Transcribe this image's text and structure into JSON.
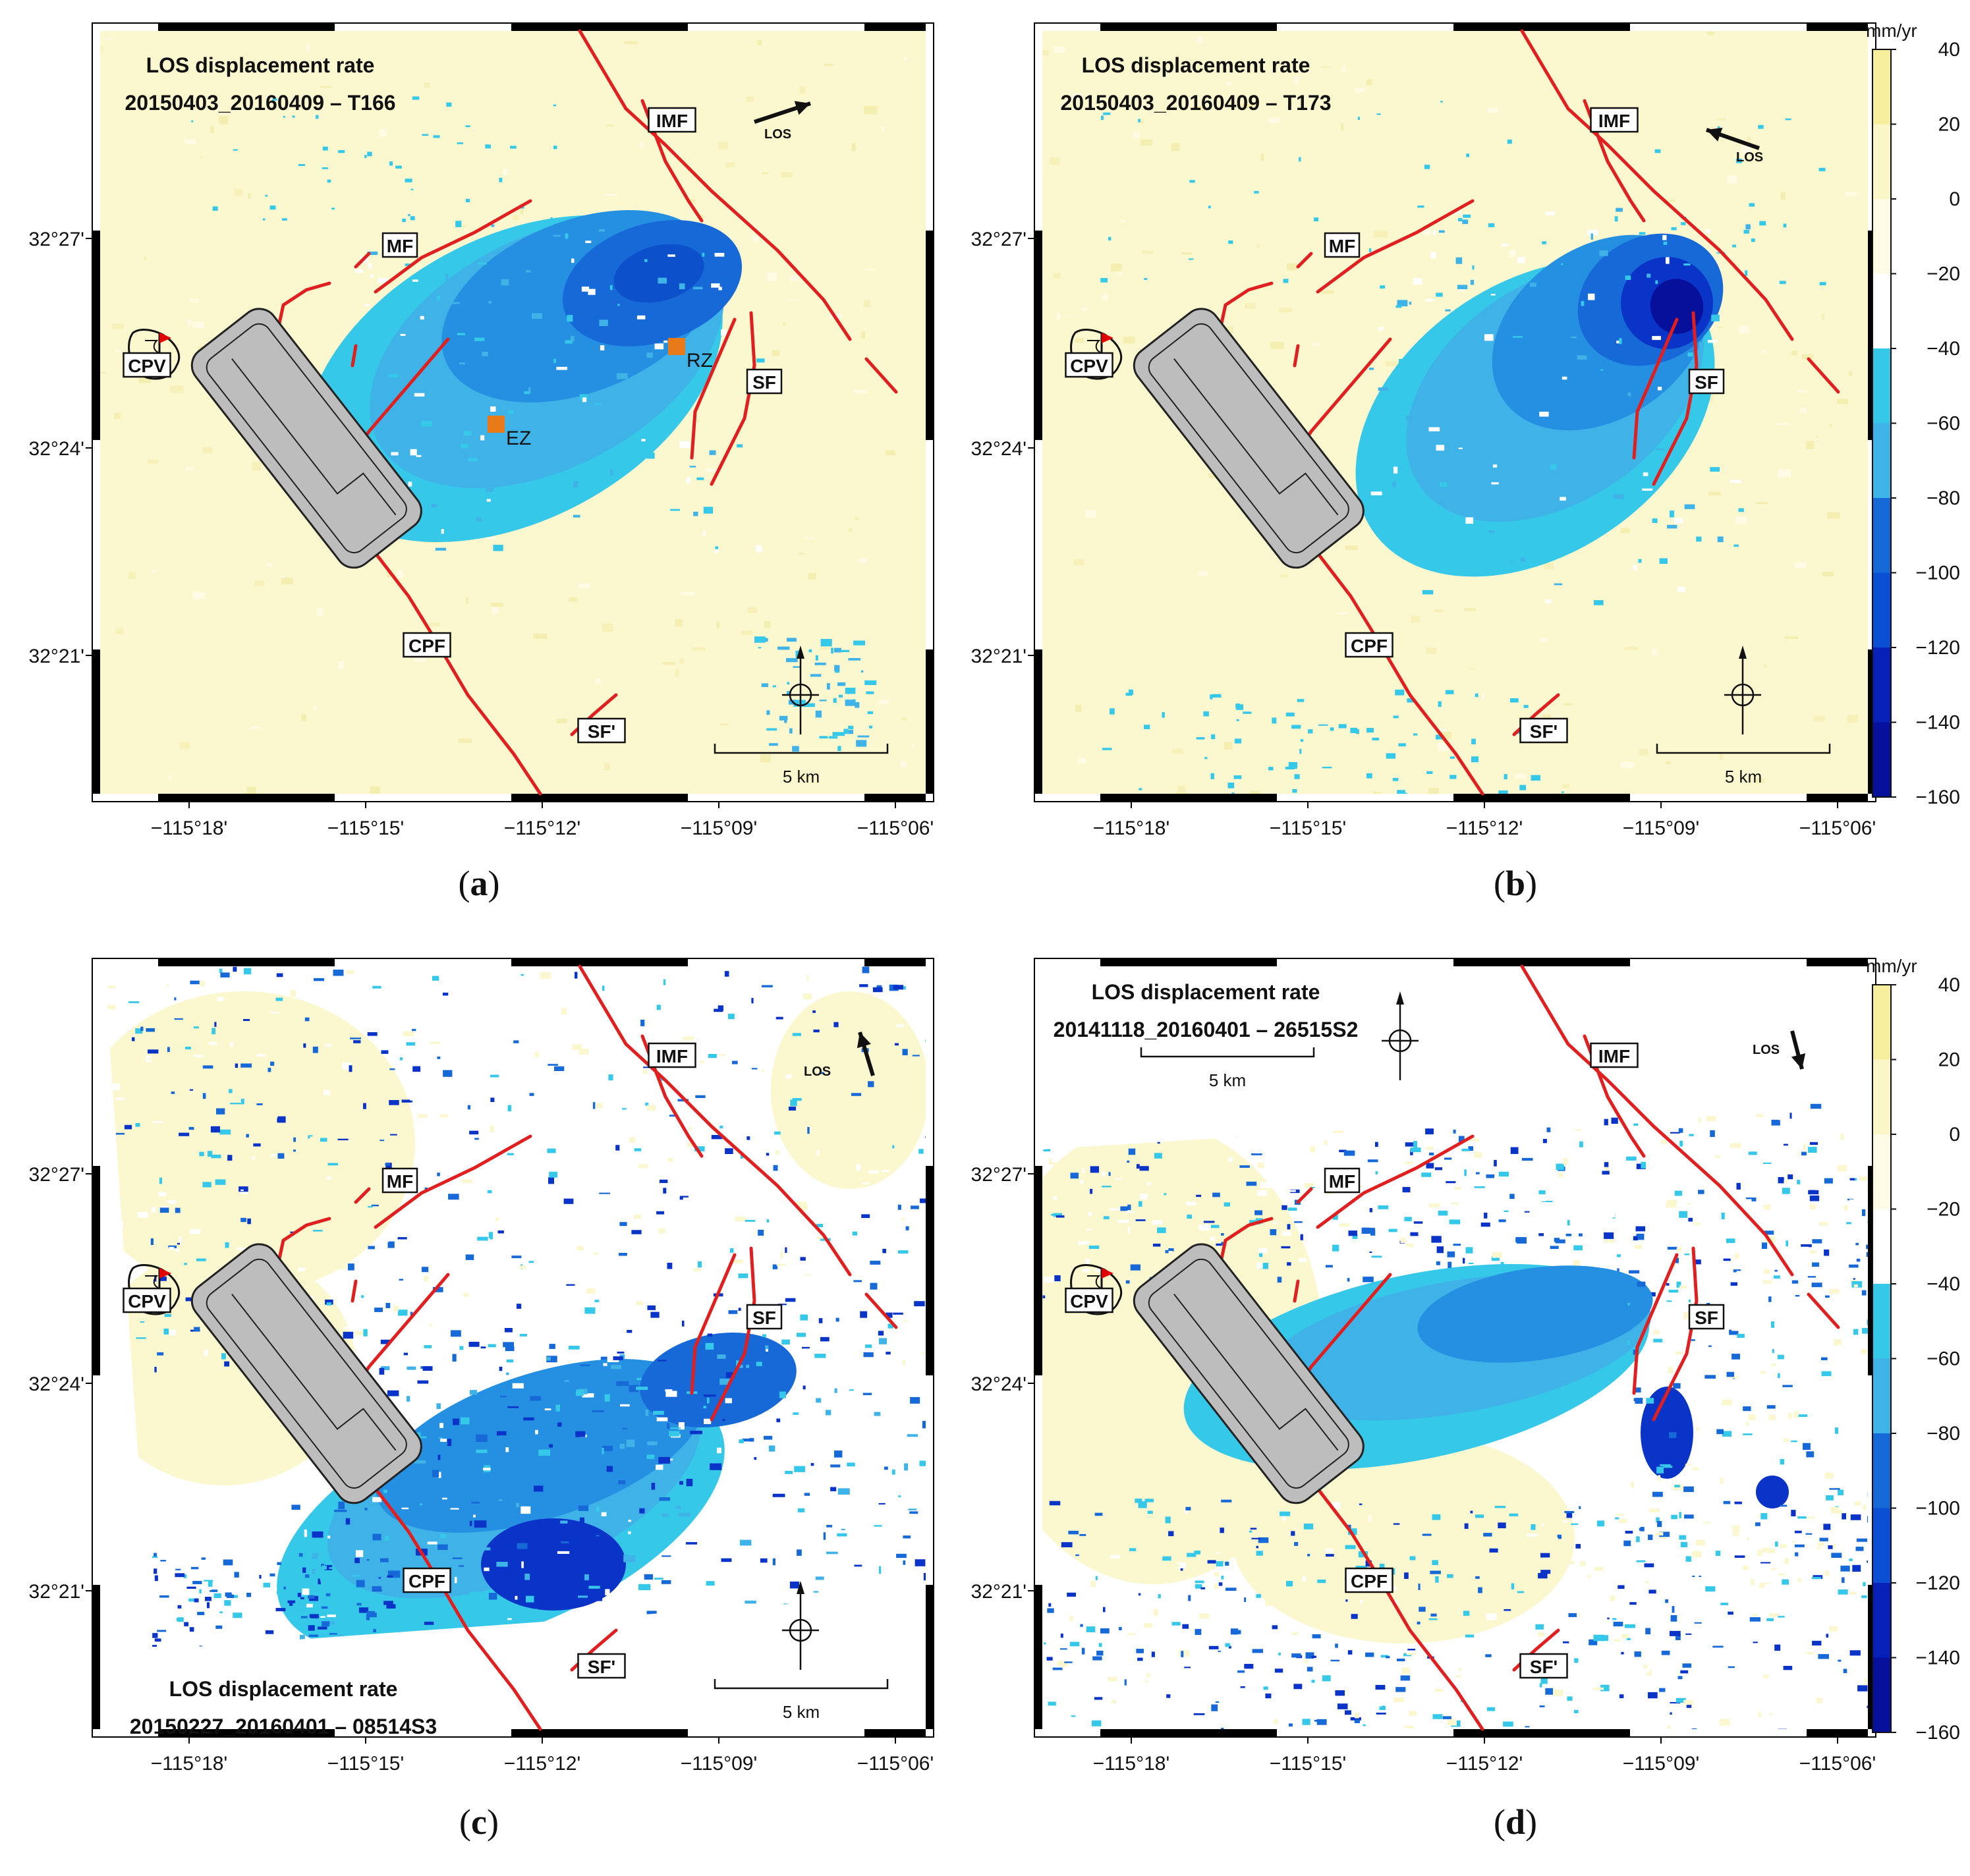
{
  "colors": {
    "stable": "#fbf7cf",
    "pale": "#fdf9dc",
    "cyan": "#35c8e8",
    "light_blue": "#3fb2e8",
    "mid_blue": "#2590e2",
    "blue": "#1669d6",
    "dark_blue": "#0a34c8",
    "navy": "#06109a",
    "fault": "#e02020",
    "facility": "#bdbdbd",
    "marker": "#e87a1a"
  },
  "axes": {
    "x_ticks": [
      "−115°18'",
      "−115°15'",
      "−115°12'",
      "−115°09'",
      "−115°06'"
    ],
    "y_ticks": [
      "32°27'",
      "32°24'",
      "32°21'"
    ]
  },
  "fault_labels": {
    "imf": "IMF",
    "mf": "MF",
    "cpv": "CPV",
    "sf": "SF",
    "cpf": "CPF",
    "sf_prime": "SF'"
  },
  "common": {
    "los": "LOS",
    "scale": "5 km"
  },
  "panels": {
    "a": {
      "label": "a",
      "title": "LOS displacement rate",
      "subtitle": "20150403_20160409 – T166",
      "markers": {
        "ez": "EZ",
        "rz": "RZ"
      }
    },
    "b": {
      "label": "b",
      "title": "LOS displacement rate",
      "subtitle": "20150403_20160409 – T173"
    },
    "c": {
      "label": "c",
      "title": "LOS displacement rate",
      "subtitle": "20150227_20160401 – 08514S3"
    },
    "d": {
      "label": "d",
      "title": "LOS displacement rate",
      "subtitle": "20141118_20160401 – 26515S2"
    }
  },
  "colorbar": {
    "unit": "mm/yr",
    "ticks": [
      "40",
      "20",
      "0",
      "−20",
      "−40",
      "−60",
      "−80",
      "−100",
      "−120",
      "−140",
      "−160"
    ],
    "range": [
      -160,
      40
    ]
  }
}
